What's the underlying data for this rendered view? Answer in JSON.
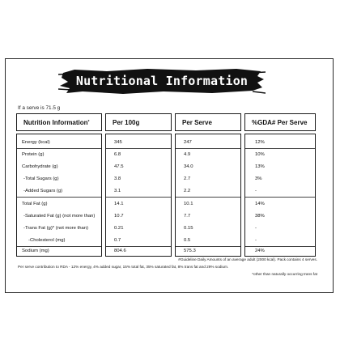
{
  "title": "Nutritional Information",
  "serve_note": "If a serve is 71.5 g",
  "headers": {
    "nutrition": "Nutrition Information",
    "nutrition_sup": "*",
    "per100": "Per 100g",
    "perserve": "Per Serve",
    "gda": "%GDA# Per Serve"
  },
  "rows": [
    {
      "label": "Energy (kcal)",
      "per100": "345",
      "perserve": "247",
      "gda": "12%"
    },
    {
      "label": "Protein (g)",
      "per100": "6.8",
      "perserve": "4.9",
      "gda": "10%"
    },
    {
      "label": "Carbohydrate (g)",
      "per100": "47.5",
      "perserve": "34.0",
      "gda": "13%"
    },
    {
      "label": "-Total Sugars (g)",
      "per100": "3.8",
      "perserve": "2.7",
      "gda": "3%"
    },
    {
      "label": "-Added Sugars (g)",
      "per100": "3.1",
      "perserve": "2.2",
      "gda": "-"
    },
    {
      "label": "Total Fat (g)",
      "per100": "14.1",
      "perserve": "10.1",
      "gda": "14%"
    },
    {
      "label": "-Saturated Fat (g) (not more than)",
      "per100": "10.7",
      "perserve": "7.7",
      "gda": "38%"
    },
    {
      "label": "-Trans Fat (g)* (not more than)",
      "per100": "0.21",
      "perserve": "0.15",
      "gda": "-"
    },
    {
      "label": "-Cholesterol (mg)",
      "per100": "0.7",
      "perserve": "0.5",
      "gda": "-"
    },
    {
      "label": "Sodium (mg)",
      "per100": "804.6",
      "perserve": "575.3",
      "gda": "24%"
    }
  ],
  "footer": {
    "guideline": "#Guideline Daily Amounts of an average adult (2000 kcal). Pack contains 4 serves.",
    "rda": "Per serve contribution to RDA - 12% energy, 4% added sugar, 15% total fat, 35% saturated fat, 8% trans fat and 29% sodium.",
    "other": "*other than naturally occurring trans fat"
  }
}
